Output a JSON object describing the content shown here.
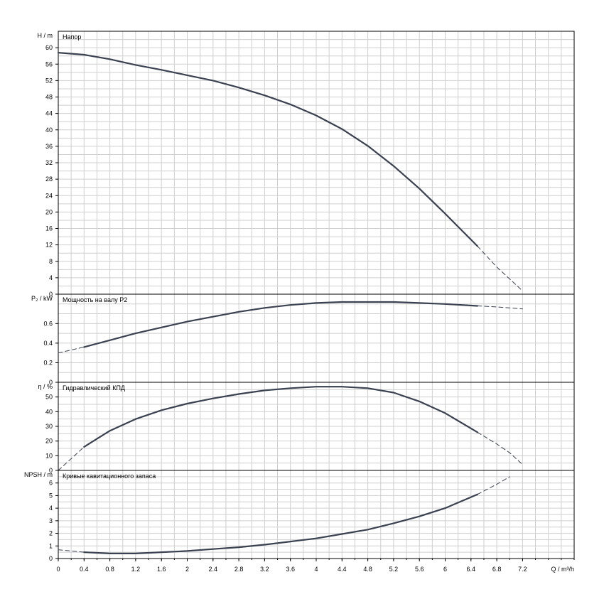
{
  "chart_data": [
    {
      "type": "line",
      "title": "Напор",
      "ylabel": "H / m",
      "xlabel": "Q / m³/h",
      "xlim": [
        0,
        8
      ],
      "ylim": [
        0,
        64
      ],
      "yticks": [
        0,
        4,
        8,
        12,
        16,
        20,
        24,
        28,
        32,
        36,
        40,
        44,
        48,
        52,
        56,
        60
      ],
      "grid": true,
      "series": [
        {
          "style": "solid",
          "x": [
            0,
            0.4,
            0.8,
            1.2,
            1.6,
            2.0,
            2.4,
            2.8,
            3.2,
            3.6,
            4.0,
            4.4,
            4.8,
            5.2,
            5.6,
            6.0,
            6.5
          ],
          "y": [
            58.8,
            58.3,
            57.2,
            55.8,
            54.6,
            53.3,
            52.0,
            50.3,
            48.4,
            46.2,
            43.5,
            40.2,
            36.1,
            31.2,
            25.7,
            19.6,
            11.7
          ]
        },
        {
          "style": "dashed",
          "x": [
            6.5,
            6.8,
            7.0,
            7.2
          ],
          "y": [
            11.7,
            6.6,
            3.7,
            0.8
          ]
        }
      ]
    },
    {
      "type": "line",
      "title": "Мощность на валу P2",
      "ylabel": "P₂ / kW",
      "xlim": [
        0,
        8
      ],
      "ylim": [
        0,
        0.9
      ],
      "yticks": [
        0,
        0.2,
        0.4,
        0.6
      ],
      "grid": true,
      "series": [
        {
          "style": "dashed",
          "x": [
            0,
            0.2,
            0.4
          ],
          "y": [
            0.3,
            0.33,
            0.36
          ]
        },
        {
          "style": "solid",
          "x": [
            0.4,
            0.8,
            1.2,
            1.6,
            2.0,
            2.4,
            2.8,
            3.2,
            3.6,
            4.0,
            4.4,
            4.8,
            5.2,
            5.6,
            6.0,
            6.5
          ],
          "y": [
            0.36,
            0.43,
            0.5,
            0.56,
            0.62,
            0.67,
            0.72,
            0.76,
            0.79,
            0.81,
            0.82,
            0.82,
            0.82,
            0.81,
            0.8,
            0.78
          ]
        },
        {
          "style": "dashed",
          "x": [
            6.5,
            6.8,
            7.2
          ],
          "y": [
            0.78,
            0.77,
            0.75
          ]
        }
      ]
    },
    {
      "type": "line",
      "title": "Гидравлический КПД",
      "ylabel": "η / %",
      "xlim": [
        0,
        8
      ],
      "ylim": [
        0,
        60
      ],
      "yticks": [
        0,
        10,
        20,
        30,
        40,
        50
      ],
      "grid": true,
      "series": [
        {
          "style": "dashed",
          "x": [
            0,
            0.2,
            0.4
          ],
          "y": [
            0,
            8,
            16
          ]
        },
        {
          "style": "solid",
          "x": [
            0.4,
            0.8,
            1.2,
            1.6,
            2.0,
            2.4,
            2.8,
            3.2,
            3.6,
            4.0,
            4.4,
            4.8,
            5.2,
            5.6,
            6.0,
            6.5
          ],
          "y": [
            16,
            27,
            35,
            41,
            45.5,
            49,
            52,
            54.5,
            56,
            57,
            57,
            56,
            53,
            47,
            39,
            26
          ]
        },
        {
          "style": "dashed",
          "x": [
            6.5,
            6.8,
            7.0,
            7.2
          ],
          "y": [
            26,
            18,
            12,
            4
          ]
        }
      ]
    },
    {
      "type": "line",
      "title": "Кривые кавитационного запаса",
      "ylabel": "NPSH / m",
      "xlabel": "Q / m³/h",
      "xlim": [
        0,
        8
      ],
      "ylim": [
        0,
        7
      ],
      "yticks": [
        0,
        1,
        2,
        3,
        4,
        5,
        6
      ],
      "xticks": [
        "0",
        "0.4",
        "0.8",
        "1.2",
        "1.6",
        "2",
        "2.4",
        "2.8",
        "3.2",
        "3.6",
        "4",
        "4.4",
        "4.8",
        "5.2",
        "5.6",
        "6",
        "6.4",
        "6.8",
        "7.2"
      ],
      "grid": true,
      "series": [
        {
          "style": "dashed",
          "x": [
            0,
            0.2,
            0.4
          ],
          "y": [
            0.7,
            0.6,
            0.5
          ]
        },
        {
          "style": "solid",
          "x": [
            0.4,
            0.8,
            1.2,
            1.6,
            2.0,
            2.4,
            2.8,
            3.2,
            3.6,
            4.0,
            4.4,
            4.8,
            5.2,
            5.6,
            6.0,
            6.5
          ],
          "y": [
            0.5,
            0.4,
            0.4,
            0.5,
            0.6,
            0.75,
            0.9,
            1.1,
            1.35,
            1.6,
            1.95,
            2.3,
            2.8,
            3.35,
            4.0,
            5.1
          ]
        },
        {
          "style": "dashed",
          "x": [
            6.5,
            6.8,
            7.0
          ],
          "y": [
            5.1,
            5.9,
            6.5
          ]
        }
      ]
    }
  ]
}
